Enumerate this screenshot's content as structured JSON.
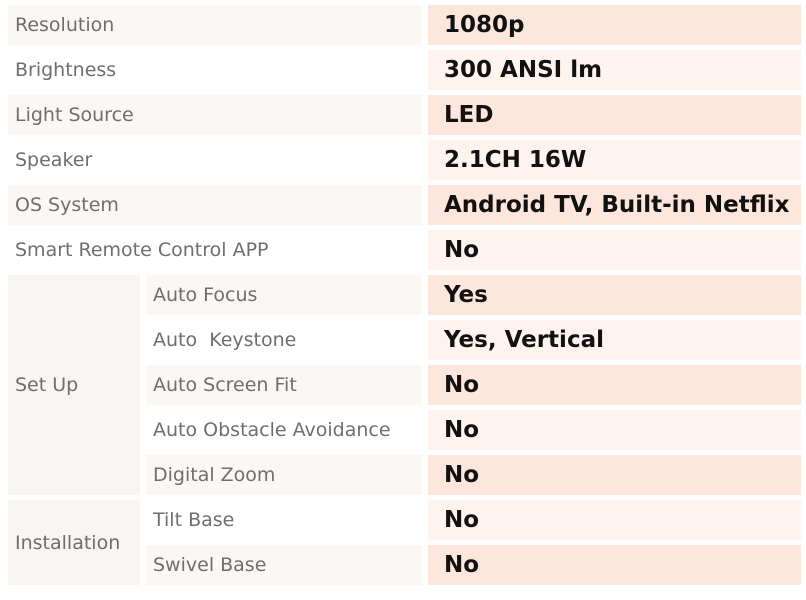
{
  "colors": {
    "label_bg_a": "#faf7f5",
    "label_bg_b": "#ffffff",
    "group_bg": "#f8f5f3",
    "value_bg_a": "#fde6db",
    "value_bg_b": "#fef3ee"
  },
  "rows": [
    {
      "label": "Resolution",
      "value": "1080p"
    },
    {
      "label": "Brightness",
      "value": "300 ANSI lm"
    },
    {
      "label": "Light Source",
      "value": "LED"
    },
    {
      "label": "Speaker",
      "value": "2.1CH 16W"
    },
    {
      "label": "OS System",
      "value": "Android TV, Built-in Netflix"
    },
    {
      "label": "Smart Remote Control APP",
      "value": "No"
    }
  ],
  "groups": [
    {
      "label": "Set Up",
      "items": [
        {
          "label": "Auto Focus",
          "value": "Yes"
        },
        {
          "label": "Auto  Keystone",
          "value": "Yes, Vertical"
        },
        {
          "label": "Auto Screen Fit",
          "value": "No"
        },
        {
          "label": "Auto Obstacle Avoidance",
          "value": "No"
        },
        {
          "label": "Digital Zoom",
          "value": "No"
        }
      ]
    },
    {
      "label": "Installation",
      "items": [
        {
          "label": "Tilt Base",
          "value": "No"
        },
        {
          "label": "Swivel Base",
          "value": "No"
        }
      ]
    }
  ]
}
